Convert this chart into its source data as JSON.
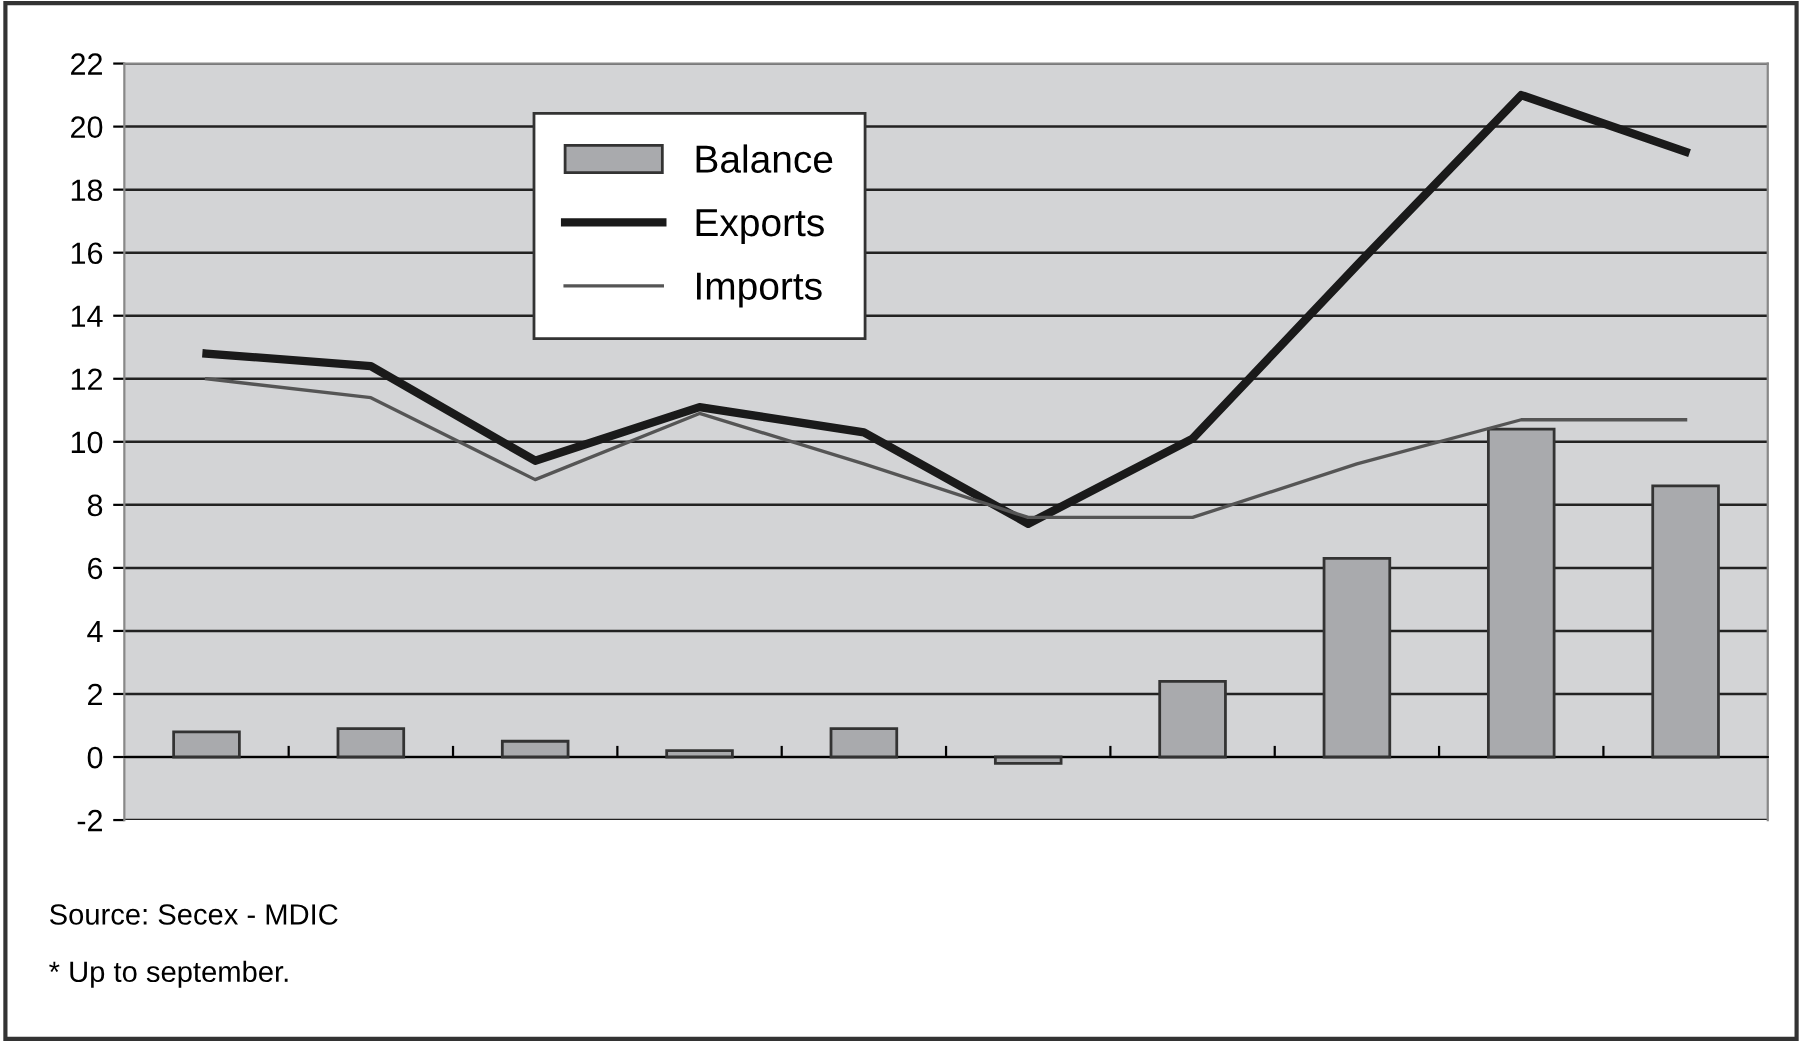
{
  "chart_data": {
    "type": "bar",
    "categories": [
      null,
      null,
      null,
      null,
      null,
      null,
      null,
      null,
      null,
      null
    ],
    "series": [
      {
        "name": "Balance",
        "color": "#a9aaad",
        "values": [
          0.8,
          0.9,
          0.5,
          0.2,
          0.9,
          -0.2,
          2.4,
          6.3,
          10.4,
          8.6
        ]
      },
      {
        "name": "Exports",
        "type": "line",
        "color": "#1a1a1a",
        "values": [
          12.8,
          12.4,
          9.4,
          11.1,
          10.3,
          7.4,
          10.1,
          15.6,
          21.0,
          19.2
        ]
      },
      {
        "name": "Imports",
        "type": "line",
        "color": "#555555",
        "values": [
          12.0,
          11.4,
          8.8,
          10.9,
          9.3,
          7.6,
          7.6,
          9.3,
          10.7,
          10.7
        ]
      }
    ],
    "ylim": [
      -2,
      22
    ],
    "yticks": [
      -2,
      0,
      2,
      4,
      6,
      8,
      10,
      12,
      14,
      16,
      18,
      20,
      22
    ],
    "grid": "y",
    "legend": "top",
    "marker": "none",
    "line_style": "solid",
    "annotations": [
      "Source: Secex - MDIC",
      "* Up to september."
    ]
  }
}
